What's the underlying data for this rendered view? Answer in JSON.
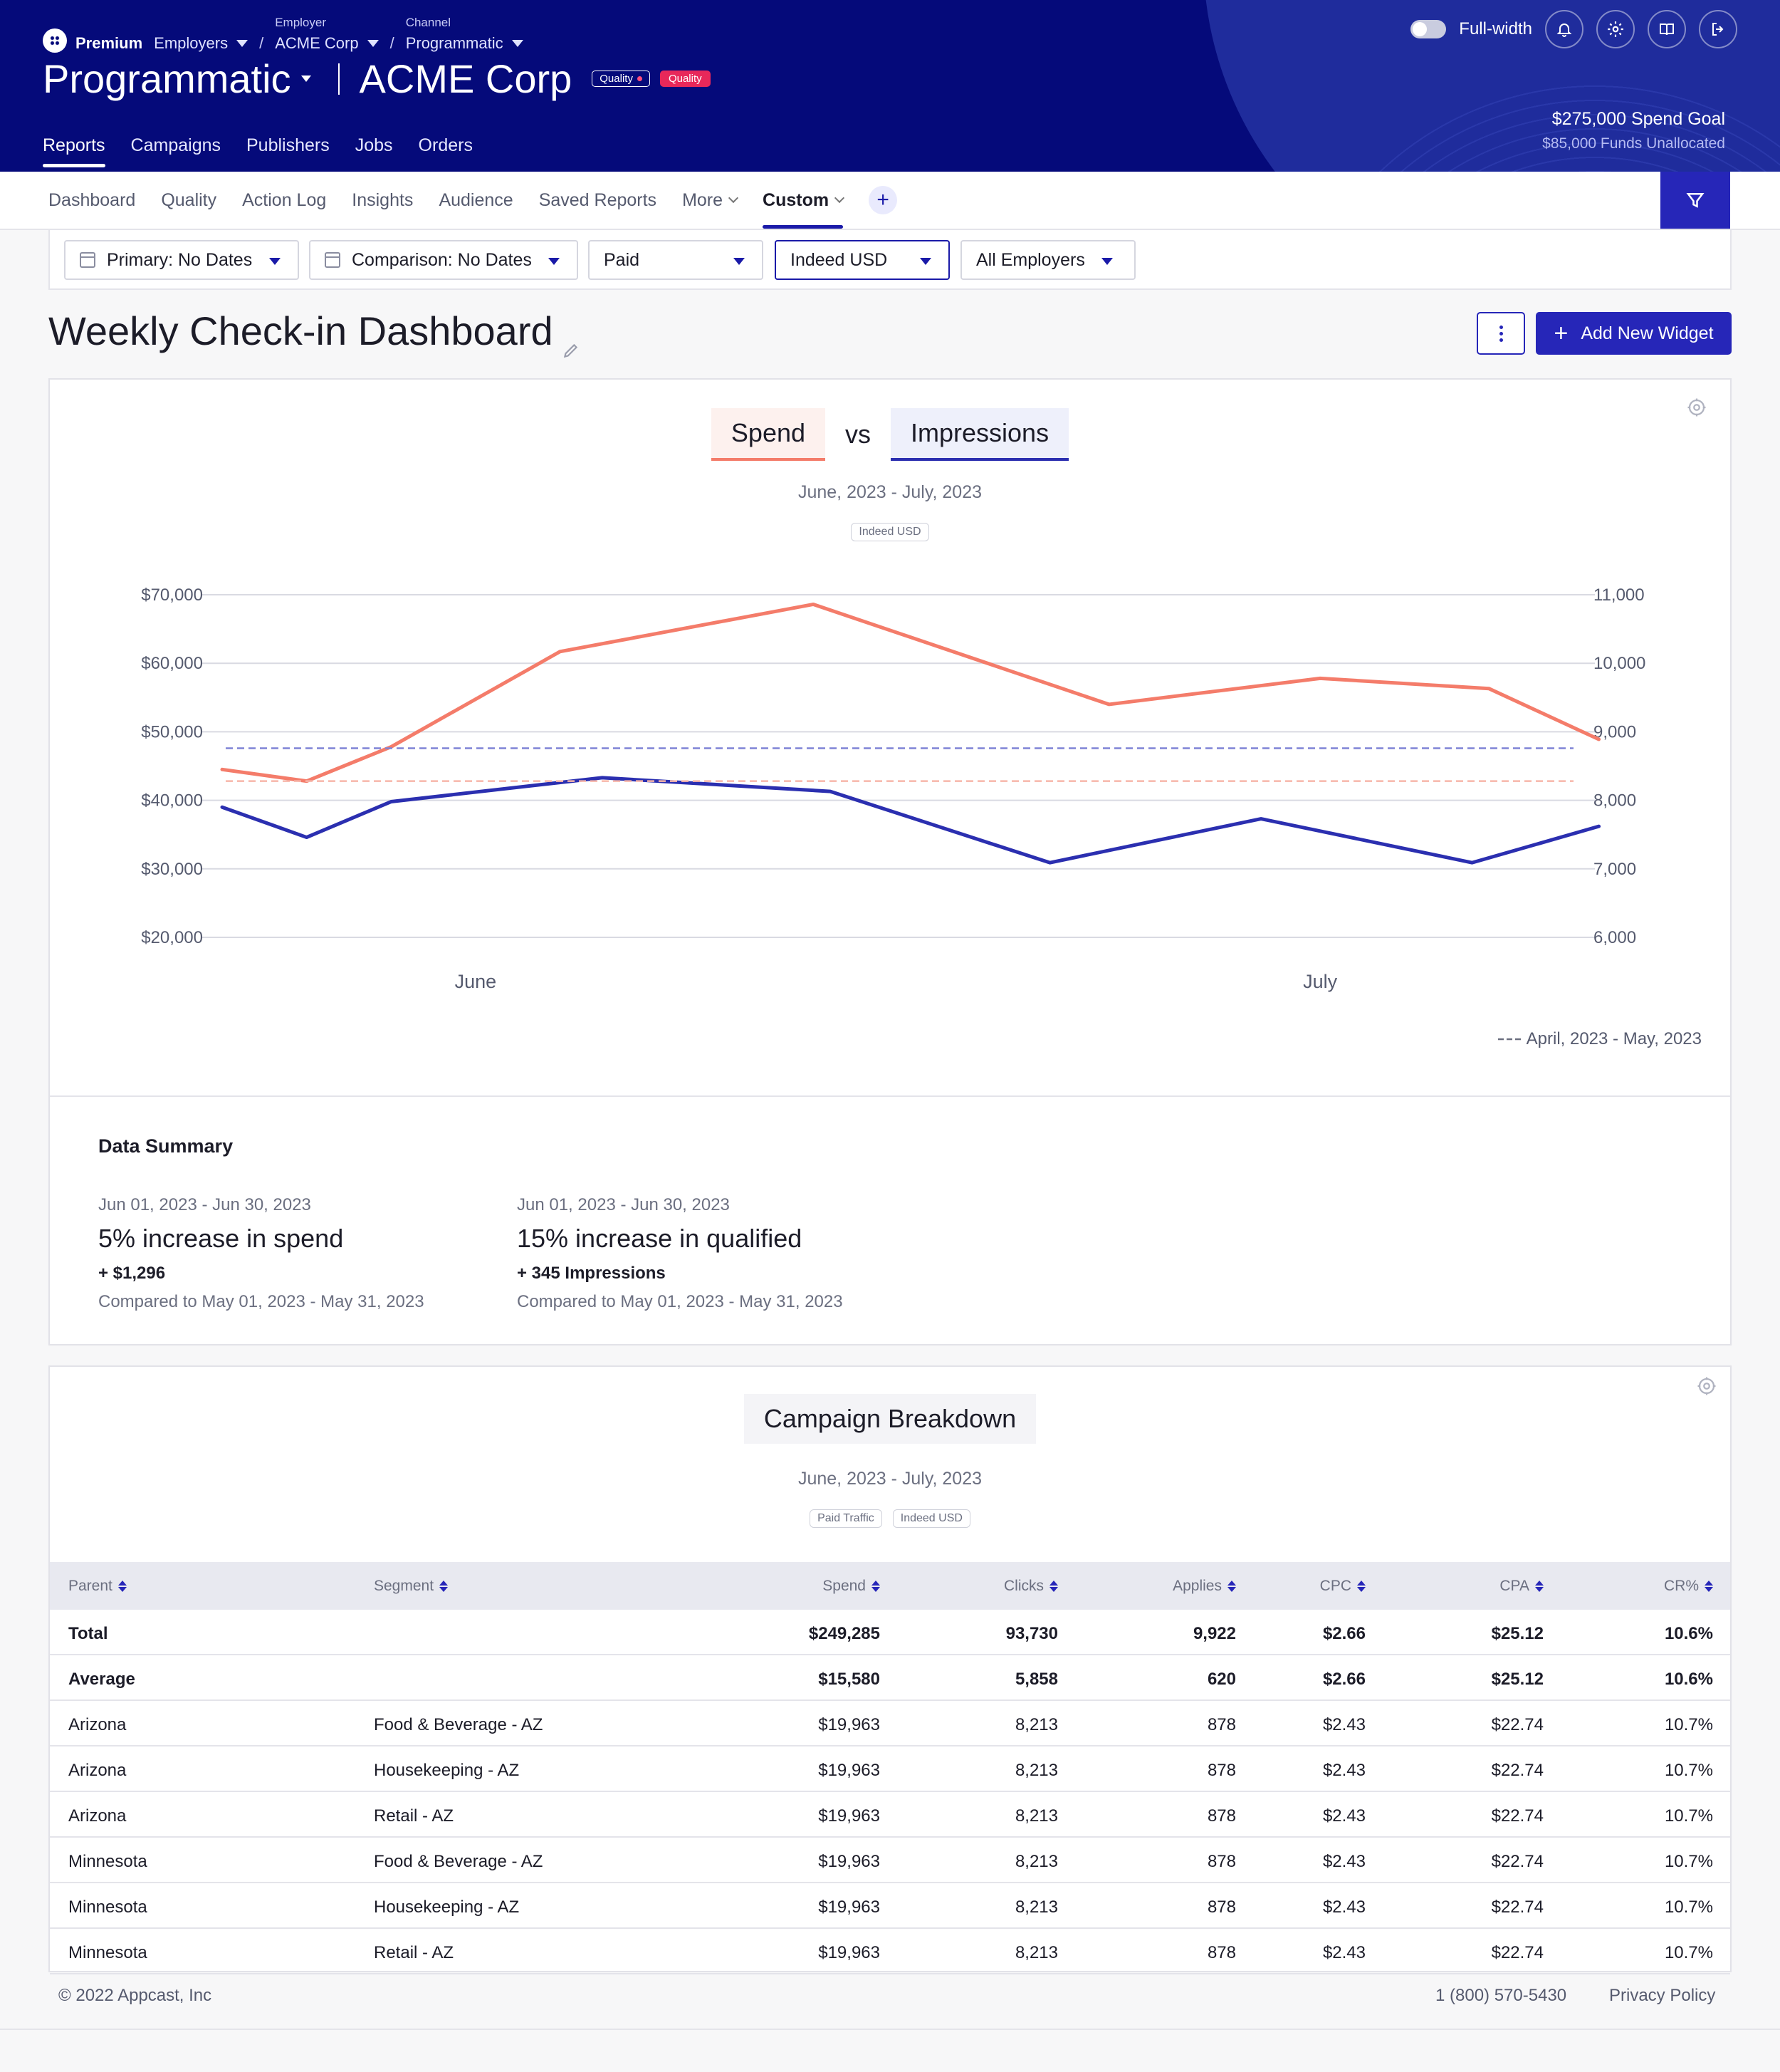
{
  "header": {
    "tier": "Premium",
    "breadcrumbs": [
      {
        "label": "",
        "value": "Employers"
      },
      {
        "label": "Employer",
        "value": "ACME Corp"
      },
      {
        "label": "Channel",
        "value": "Programmatic"
      }
    ],
    "separator": "/",
    "product": "Programmatic",
    "account": "ACME Corp",
    "badge_outline": "Quality",
    "badge_red": "Quality",
    "nav": [
      "Reports",
      "Campaigns",
      "Publishers",
      "Jobs",
      "Orders"
    ],
    "nav_active": "Reports",
    "fullwidth_label": "Full-width",
    "spend_goal": "$275,000 Spend Goal",
    "funds_unallocated": "$85,000 Funds Unallocated",
    "icons": [
      "bell-icon",
      "gear-icon",
      "book-icon",
      "logout-icon"
    ]
  },
  "subnav": {
    "tabs": [
      "Dashboard",
      "Quality",
      "Action Log",
      "Insights",
      "Audience",
      "Saved Reports",
      "More",
      "Custom"
    ],
    "active": "Custom"
  },
  "filters": {
    "primary": "Primary: No Dates",
    "comparison": "Comparison: No Dates",
    "traffic": "Paid",
    "currency": "Indeed USD",
    "employers": "All Employers"
  },
  "page": {
    "title": "Weekly Check-in Dashboard",
    "add_widget": "Add New Widget"
  },
  "chart_widget": {
    "title_left": "Spend",
    "title_vs": "vs",
    "title_right": "Impressions",
    "date_range": "June, 2023 - July, 2023",
    "badge": "Indeed USD",
    "comparison_legend": "April, 2023 - May, 2023",
    "colors": {
      "spend": "#f47c6a",
      "impressions": "#2b2fb0"
    }
  },
  "chart_data": {
    "type": "line",
    "title": "Spend vs Impressions",
    "x_tick_labels": [
      "June",
      "July"
    ],
    "x": [
      0,
      1,
      2,
      3,
      4,
      5,
      6,
      7,
      8,
      9,
      10,
      11,
      12,
      13,
      14,
      15,
      16
    ],
    "x_ticks_at": {
      "June": 3,
      "July": 13
    },
    "y_left": {
      "label": "Spend",
      "ticks": [
        "$70,000",
        "$60,000",
        "$50,000",
        "$40,000",
        "$30,000",
        "$20,000"
      ],
      "range": [
        20000,
        70000
      ]
    },
    "y_right": {
      "label": "Impressions",
      "ticks": [
        "11,000",
        "10,000",
        "9,000",
        "8,000",
        "7,000",
        "6,000"
      ],
      "range": [
        6000,
        11000
      ]
    },
    "series": [
      {
        "name": "Spend",
        "axis": "left",
        "x": [
          0,
          1,
          2,
          4,
          7,
          10.5,
          13,
          15,
          16.3
        ],
        "values": [
          44500,
          42800,
          47800,
          61700,
          68600,
          54000,
          57800,
          56300,
          48900
        ]
      },
      {
        "name": "Impressions",
        "axis": "right",
        "x": [
          0,
          1,
          2,
          4.5,
          7.2,
          9.8,
          12.3,
          14.8,
          16.3
        ],
        "values": [
          7900,
          7460,
          7980,
          8330,
          8130,
          7090,
          7730,
          7090,
          7620
        ]
      },
      {
        "name": "April, 2023 - May, 2023 (Spend)",
        "axis": "left",
        "style": "dashed",
        "constant": 42800
      },
      {
        "name": "April, 2023 - May, 2023 (Impressions)",
        "axis": "right",
        "style": "dashed",
        "constant": 8760
      }
    ],
    "grid": true,
    "legend": "bottom-right"
  },
  "summary": {
    "title": "Data Summary",
    "items": [
      {
        "dates": "Jun 01, 2023 - Jun 30, 2023",
        "headline": "5% increase in spend",
        "value": "+ $1,296",
        "compare": "Compared to May 01, 2023 - May 31, 2023"
      },
      {
        "dates": "Jun 01, 2023 - Jun 30, 2023",
        "headline": "15% increase in qualified",
        "value": "+ 345 Impressions",
        "compare": "Compared to May 01, 2023 - May 31, 2023"
      }
    ]
  },
  "breakdown": {
    "title": "Campaign Breakdown",
    "date_range": "June, 2023 - July, 2023",
    "badges": [
      "Paid Traffic",
      "Indeed USD"
    ],
    "columns": [
      "Parent",
      "Segment",
      "Spend",
      "Clicks",
      "Applies",
      "CPC",
      "CPA",
      "CR%"
    ],
    "rows": [
      [
        "Total",
        "",
        "$249,285",
        "93,730",
        "9,922",
        "$2.66",
        "$25.12",
        "10.6%"
      ],
      [
        "Average",
        "",
        "$15,580",
        "5,858",
        "620",
        "$2.66",
        "$25.12",
        "10.6%"
      ],
      [
        "Arizona",
        "Food & Beverage - AZ",
        "$19,963",
        "8,213",
        "878",
        "$2.43",
        "$22.74",
        "10.7%"
      ],
      [
        "Arizona",
        "Housekeeping - AZ",
        "$19,963",
        "8,213",
        "878",
        "$2.43",
        "$22.74",
        "10.7%"
      ],
      [
        "Arizona",
        "Retail - AZ",
        "$19,963",
        "8,213",
        "878",
        "$2.43",
        "$22.74",
        "10.7%"
      ],
      [
        "Minnesota",
        "Food & Beverage - AZ",
        "$19,963",
        "8,213",
        "878",
        "$2.43",
        "$22.74",
        "10.7%"
      ],
      [
        "Minnesota",
        "Housekeeping - AZ",
        "$19,963",
        "8,213",
        "878",
        "$2.43",
        "$22.74",
        "10.7%"
      ],
      [
        "Minnesota",
        "Retail - AZ",
        "$19,963",
        "8,213",
        "878",
        "$2.43",
        "$22.74",
        "10.7%"
      ]
    ]
  },
  "footer": {
    "copyright": "© 2022 Appcast, Inc",
    "phone": "1 (800) 570-5430",
    "privacy": "Privacy Policy"
  }
}
